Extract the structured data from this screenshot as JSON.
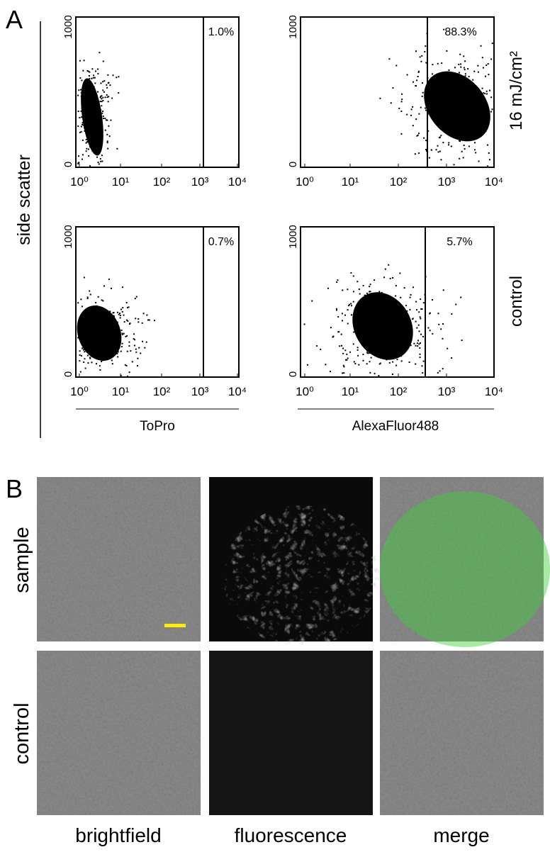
{
  "panel_a": {
    "label": "A",
    "y_axis_label": "side scatter",
    "row_labels": [
      "16 mJ/cm²",
      "control"
    ],
    "x_axis_labels": [
      "ToPro",
      "AlexaFluor488"
    ],
    "plots": [
      {
        "gate_percent": "1.0%",
        "xticks": [
          "10⁰",
          "10¹",
          "10²",
          "10³",
          "10⁴"
        ],
        "yticks": [
          "0",
          "1000"
        ]
      },
      {
        "gate_percent": "88.3%",
        "xticks": [
          "10⁰",
          "10¹",
          "10²",
          "10³",
          "10⁴"
        ],
        "yticks": [
          "0",
          "1000"
        ]
      },
      {
        "gate_percent": "0.7%",
        "xticks": [
          "10⁰",
          "10¹",
          "10²",
          "10³",
          "10⁴"
        ],
        "yticks": [
          "0",
          "1000"
        ]
      },
      {
        "gate_percent": "5.7%",
        "xticks": [
          "10⁰",
          "10¹",
          "10²",
          "10³",
          "10⁴"
        ],
        "yticks": [
          "0",
          "1000"
        ]
      }
    ]
  },
  "panel_b": {
    "label": "B",
    "row_labels": [
      "sample",
      "control"
    ],
    "column_labels": [
      "brightfield",
      "fluorescence",
      "merge"
    ]
  }
}
